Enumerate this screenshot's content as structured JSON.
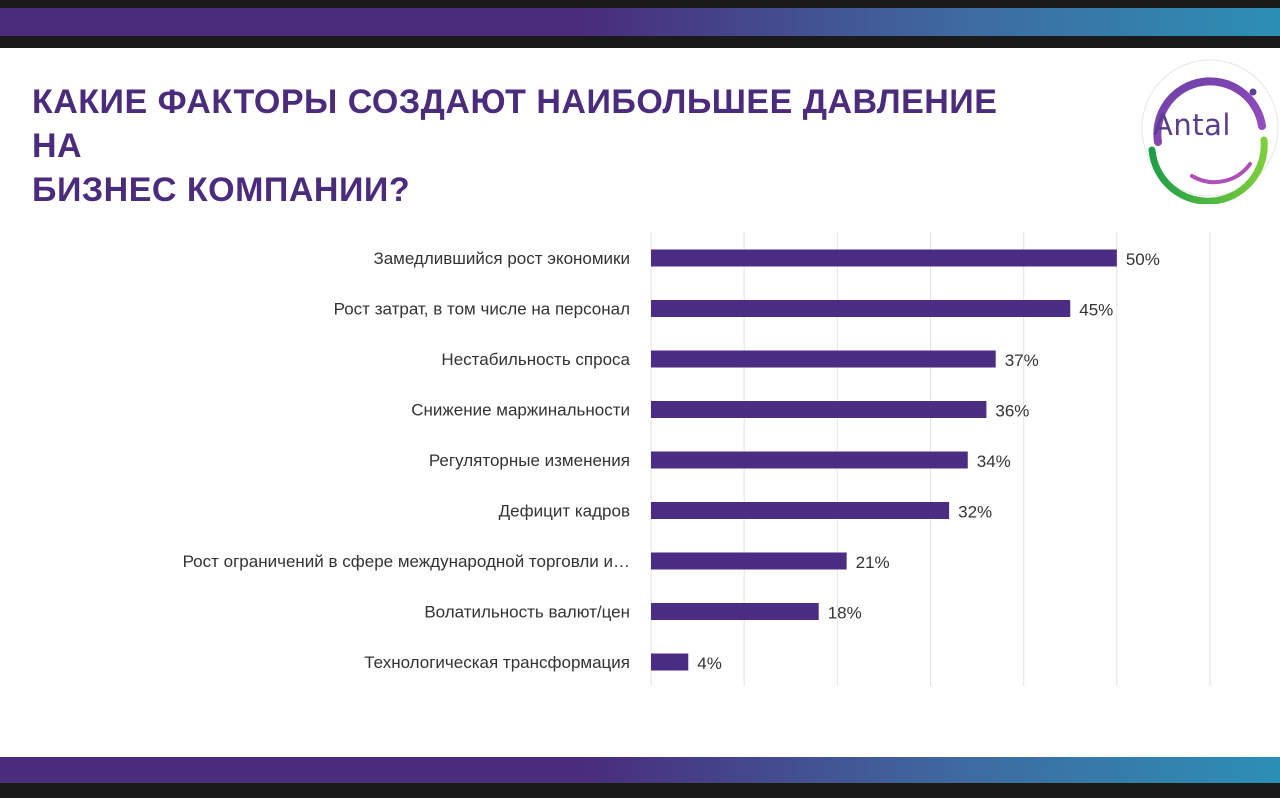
{
  "header": {
    "title_line1": "КАКИЕ ФАКТОРЫ СОЗДАЮТ НАИБОЛЬШЕЕ ДАВЛЕНИЕ НА",
    "title_line2": "БИЗНЕС КОМПАНИИ?"
  },
  "logo": {
    "text": "Antal"
  },
  "colors": {
    "brand_purple": "#4a2b7c",
    "bar": "#4b2e83",
    "band_blue": "#2c8fb5",
    "logo_green": "#2bb24c"
  },
  "chart_data": {
    "type": "bar",
    "orientation": "horizontal",
    "categories": [
      "Замедлившийся рост экономики",
      "Рост затрат, в том числе на персонал",
      "Нестабильность спроса",
      "Снижение маржинальности",
      "Регуляторные изменения",
      "Дефицит кадров",
      "Рост ограничений в сфере международной торговли и…",
      "Волатильность валют/цен",
      "Технологическая трансформация"
    ],
    "values": [
      50,
      45,
      37,
      36,
      34,
      32,
      21,
      18,
      4
    ],
    "value_labels": [
      "50%",
      "45%",
      "37%",
      "36%",
      "34%",
      "32%",
      "21%",
      "18%",
      "4%"
    ],
    "xlim": [
      0,
      60
    ],
    "grid": true,
    "legend": "none"
  }
}
